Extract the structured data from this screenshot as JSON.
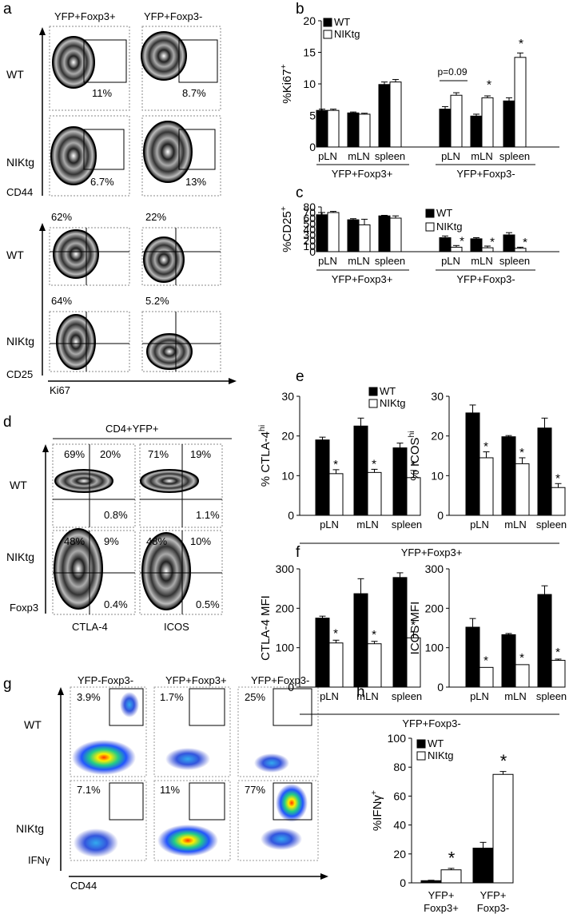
{
  "panel_letters": [
    "a",
    "b",
    "c",
    "d",
    "e",
    "f",
    "g",
    "h"
  ],
  "panel_a": {
    "col_labels": [
      "YFP+Foxp3+",
      "YFP+Foxp3-"
    ],
    "row_labels": [
      "WT",
      "NIKtg",
      "WT",
      "NIKtg"
    ],
    "axis_y_top": "CD44",
    "axis_y_bottom": "CD25",
    "axis_x": "Ki67",
    "gate_values_top": [
      "11%",
      "8.7%",
      "6.7%",
      "13%"
    ],
    "gate_values_bottom": [
      "62%",
      "22%",
      "64%",
      "5.2%"
    ]
  },
  "panel_d": {
    "header": "CD4+YFP+",
    "row_labels": [
      "WT",
      "NIKtg"
    ],
    "axis_y": "Foxp3",
    "axis_x": [
      "CTLA-4",
      "ICOS"
    ],
    "quadrants": [
      {
        "ul": "69%",
        "ur": "20%",
        "lr": "0.8%"
      },
      {
        "ul": "71%",
        "ur": "19%",
        "lr": "1.1%"
      },
      {
        "ul": "48%",
        "ur": "9%",
        "lr": "0.4%"
      },
      {
        "ul": "48%",
        "ur": "10%",
        "lr": "0.5%"
      }
    ]
  },
  "panel_g": {
    "col_labels": [
      "YFP-Foxp3-",
      "YFP+Foxp3+",
      "YFP+Foxp3-"
    ],
    "row_labels": [
      "WT",
      "NIKtg"
    ],
    "axis_y": "IFNγ",
    "axis_x": "CD44",
    "gate_values": [
      "3.9%",
      "1.7%",
      "25%",
      "7.1%",
      "11%",
      "77%"
    ]
  },
  "chart_data": [
    {
      "id": "b",
      "type": "bar",
      "ylabel": "%Ki67+",
      "ylim": [
        0,
        20
      ],
      "yticks": [
        0,
        5,
        10,
        15,
        20
      ],
      "categories": [
        "pLN",
        "mLN",
        "spleen",
        "pLN",
        "mLN",
        "spleen"
      ],
      "groups": [
        "YFP+Foxp3+",
        "YFP+Foxp3-"
      ],
      "series": [
        {
          "name": "WT",
          "values": [
            5.8,
            5.4,
            9.9,
            6.0,
            4.9,
            7.3
          ],
          "errors": [
            0.2,
            0.15,
            0.4,
            0.4,
            0.3,
            0.5
          ]
        },
        {
          "name": "NIKtg",
          "values": [
            5.8,
            5.2,
            10.3,
            8.2,
            7.8,
            14.2
          ],
          "errors": [
            0.2,
            0.15,
            0.4,
            0.4,
            0.3,
            0.7
          ]
        }
      ],
      "annotations": [
        "p=0.09",
        "*",
        "*"
      ],
      "legend": "top-left"
    },
    {
      "id": "c",
      "type": "bar",
      "ylabel": "%CD25+",
      "ylim": [
        0,
        80
      ],
      "yticks": [
        0,
        10,
        20,
        30,
        40,
        50,
        60,
        70,
        80
      ],
      "categories": [
        "pLN",
        "mLN",
        "spleen",
        "pLN",
        "mLN",
        "spleen"
      ],
      "groups": [
        "YFP+Foxp3+",
        "YFP+Foxp3-"
      ],
      "series": [
        {
          "name": "WT",
          "values": [
            66,
            57,
            64,
            25,
            23,
            30
          ],
          "errors": [
            4,
            2,
            1,
            3,
            2,
            4
          ]
        },
        {
          "name": "NIKtg",
          "values": [
            70,
            48,
            60,
            8,
            7,
            6
          ],
          "errors": [
            2,
            10,
            4,
            3,
            3,
            2
          ]
        }
      ],
      "annotations": [
        "*",
        "*",
        "*"
      ],
      "legend": "top-right"
    },
    {
      "id": "e1",
      "type": "bar",
      "ylabel": "% CTLA-4hi",
      "ylim": [
        0,
        30
      ],
      "yticks": [
        0,
        10,
        20,
        30
      ],
      "categories": [
        "pLN",
        "mLN",
        "spleen"
      ],
      "series": [
        {
          "name": "WT",
          "values": [
            19,
            22.5,
            17
          ],
          "errors": [
            0.7,
            2,
            1.2
          ]
        },
        {
          "name": "NIKtg",
          "values": [
            10.5,
            10.8,
            9.5
          ],
          "errors": [
            1,
            0.8,
            1.8
          ]
        }
      ],
      "annotations": [
        "*",
        "*",
        "*"
      ],
      "group_label": "YFP+Foxp3+",
      "legend": "top-right"
    },
    {
      "id": "e2",
      "type": "bar",
      "ylabel": "% ICOShi",
      "ylim": [
        0,
        30
      ],
      "yticks": [
        0,
        10,
        20,
        30
      ],
      "categories": [
        "pLN",
        "mLN",
        "spleen"
      ],
      "series": [
        {
          "name": "WT",
          "values": [
            25.8,
            19.8,
            22
          ],
          "errors": [
            2,
            0.3,
            2.5
          ]
        },
        {
          "name": "NIKtg",
          "values": [
            14.5,
            13,
            7
          ],
          "errors": [
            1.5,
            1.5,
            1
          ]
        }
      ],
      "annotations": [
        "*",
        "*",
        "*"
      ]
    },
    {
      "id": "f1",
      "type": "bar",
      "ylabel": "CTLA-4 MFI",
      "ylim": [
        0,
        300
      ],
      "yticks": [
        0,
        100,
        200,
        300
      ],
      "categories": [
        "pLN",
        "mLN",
        "spleen"
      ],
      "series": [
        {
          "name": "WT",
          "values": [
            175,
            237,
            278
          ],
          "errors": [
            5,
            38,
            12
          ]
        },
        {
          "name": "NIKtg",
          "values": [
            112,
            110,
            125
          ],
          "errors": [
            7,
            6,
            15
          ]
        }
      ],
      "annotations": [
        "*",
        "*",
        "*"
      ],
      "group_label": "YFP+Foxp3-"
    },
    {
      "id": "f2",
      "type": "bar",
      "ylabel": "ICOS MFI",
      "ylim": [
        0,
        300
      ],
      "yticks": [
        0,
        100,
        200,
        300
      ],
      "categories": [
        "pLN",
        "mLN",
        "spleen"
      ],
      "series": [
        {
          "name": "WT",
          "values": [
            152,
            133,
            235
          ],
          "errors": [
            22,
            3,
            22
          ]
        },
        {
          "name": "NIKtg",
          "values": [
            50,
            57,
            68
          ],
          "errors": [
            0,
            0,
            3
          ]
        }
      ],
      "annotations": [
        "*",
        "*",
        "*"
      ]
    },
    {
      "id": "h",
      "type": "bar",
      "ylabel": "%IFNγ+",
      "ylim": [
        0,
        100
      ],
      "yticks": [
        0,
        20,
        40,
        60,
        80,
        100
      ],
      "categories": [
        "YFP+ Foxp3+",
        "YFP+ Foxp3-"
      ],
      "series": [
        {
          "name": "WT",
          "values": [
            1.5,
            24
          ],
          "errors": [
            0.3,
            4
          ]
        },
        {
          "name": "NIKtg",
          "values": [
            9,
            75
          ],
          "errors": [
            1,
            2
          ]
        }
      ],
      "annotations": [
        "*",
        "*"
      ],
      "legend": "top-left"
    }
  ],
  "colors": {
    "wt": "#000000",
    "niktg": "#ffffff",
    "axis": "#000000"
  }
}
